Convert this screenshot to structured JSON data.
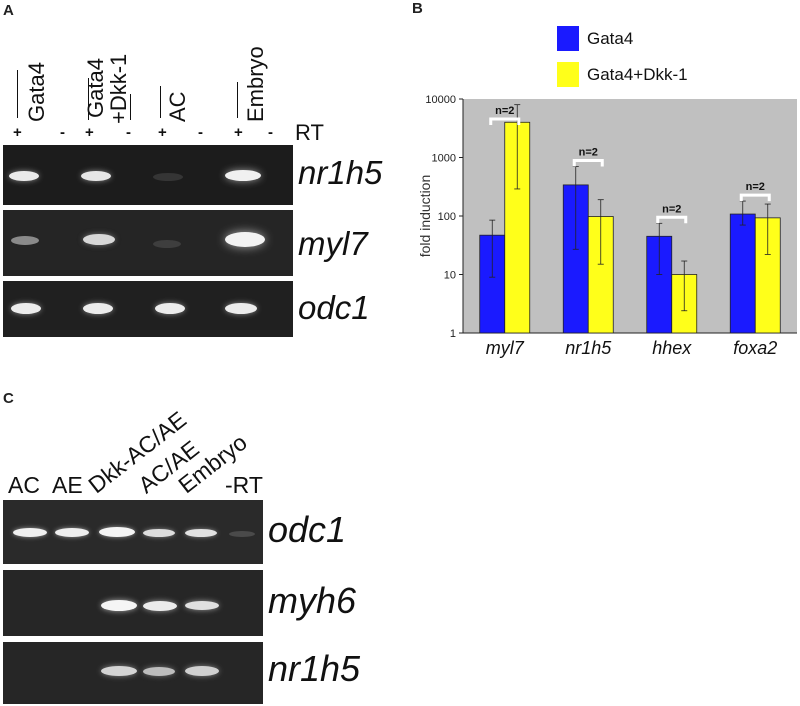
{
  "panels": {
    "a": "A",
    "b": "B",
    "c": "C"
  },
  "panel_a": {
    "lanes": [
      "Gata4",
      "Gata4",
      "+Dkk-1",
      "AC",
      "Embryo"
    ],
    "pm": [
      "+",
      "-",
      "+",
      "-",
      "+",
      "-",
      "+",
      "-"
    ],
    "rt": "RT",
    "genes": [
      "nr1h5",
      "myl7",
      "odc1"
    ]
  },
  "panel_c": {
    "lanes": [
      "AC",
      "AE",
      "Dkk-AC/AE",
      "AC/AE",
      "Embryo",
      "-RT"
    ],
    "genes": [
      "odc1",
      "myh6",
      "nr1h5"
    ]
  },
  "chart_data": {
    "type": "bar",
    "categories": [
      "myl7",
      "nr1h5",
      "hhex",
      "foxa2"
    ],
    "series": [
      {
        "name": "Gata4",
        "color": "#1a1aff",
        "values": [
          47,
          340,
          45,
          108
        ],
        "err_low": [
          9,
          27,
          10,
          70
        ],
        "err_high": [
          85,
          700,
          75,
          180
        ]
      },
      {
        "name": "Gata4+Dkk-1",
        "color": "#ffff1a",
        "values": [
          4000,
          98,
          10,
          93
        ],
        "err_low": [
          290,
          15,
          2.4,
          22
        ],
        "err_high": [
          8000,
          190,
          17,
          160
        ]
      }
    ],
    "annotations": [
      "n=2",
      "n=2",
      "n=2",
      "n=2"
    ],
    "ylabel": "fold induction",
    "yscale": "log",
    "ylim": [
      1,
      10000
    ],
    "yticks": [
      "1",
      "10",
      "100",
      "1000",
      "10000"
    ],
    "legend_position": "top",
    "plot_background": "#c0c0c0",
    "grid": false
  }
}
